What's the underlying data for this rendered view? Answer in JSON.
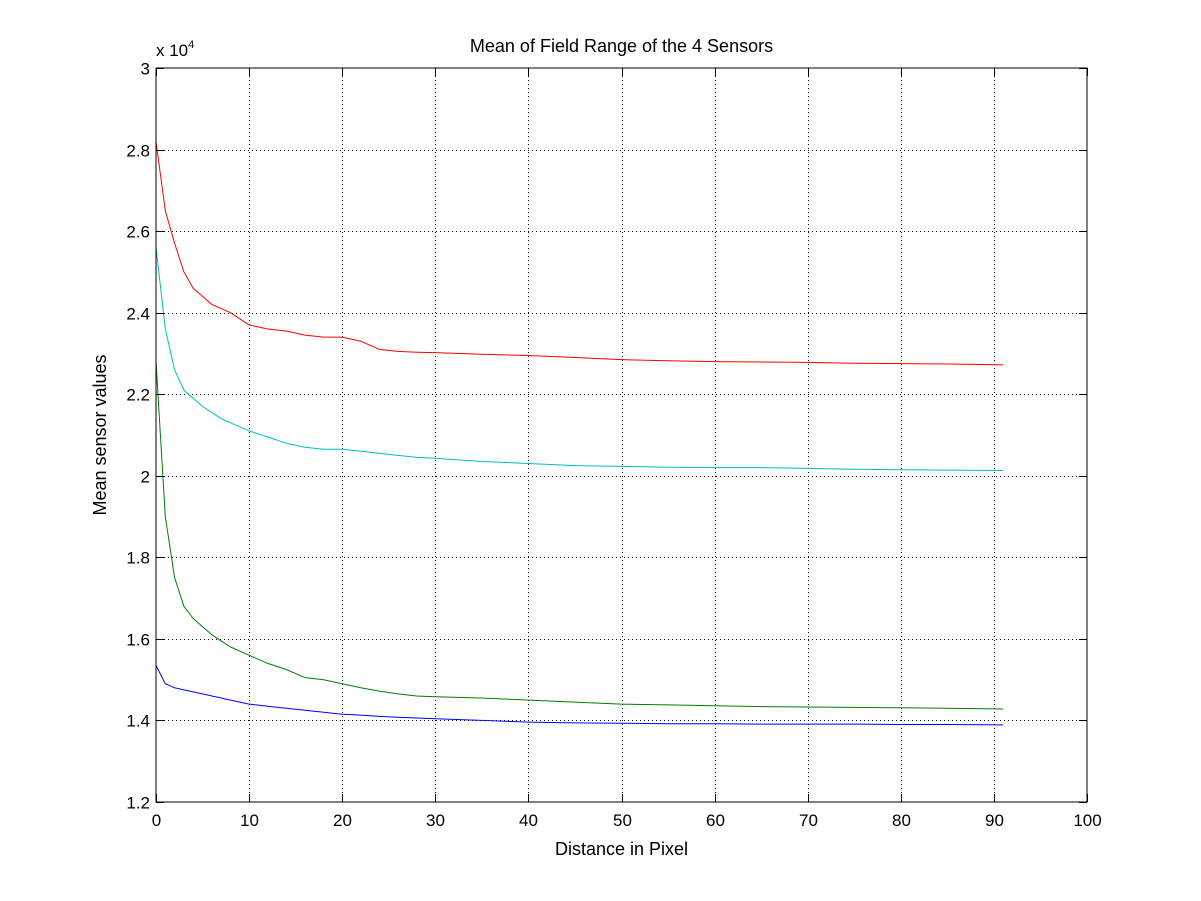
{
  "chart_data": {
    "type": "line",
    "title": "Mean of Field Range of the 4 Sensors",
    "xlabel": "Distance in Pixel",
    "ylabel": "Mean sensor values",
    "y_exponent_prefix": "x 10",
    "y_exponent_power": "4",
    "xlim": [
      0,
      100
    ],
    "ylim": [
      1.2,
      3.0
    ],
    "x_ticks": [
      0,
      10,
      20,
      30,
      40,
      50,
      60,
      70,
      80,
      90,
      100
    ],
    "x_tick_labels": [
      "0",
      "10",
      "20",
      "30",
      "40",
      "50",
      "60",
      "70",
      "80",
      "90",
      "100"
    ],
    "y_ticks": [
      1.2,
      1.4,
      1.6,
      1.8,
      2.0,
      2.2,
      2.4,
      2.6,
      2.8,
      3.0
    ],
    "y_tick_labels": [
      "1.2",
      "1.4",
      "1.6",
      "1.8",
      "2",
      "2.2",
      "2.4",
      "2.6",
      "2.8",
      "3"
    ],
    "grid": true,
    "x": [
      0,
      1,
      2,
      3,
      4,
      5,
      6,
      7,
      8,
      10,
      12,
      14,
      16,
      18,
      20,
      22,
      24,
      26,
      28,
      30,
      35,
      40,
      45,
      50,
      55,
      60,
      65,
      70,
      75,
      80,
      85,
      91
    ],
    "series": [
      {
        "color": "#ff0000",
        "values": [
          2.82,
          2.65,
          2.57,
          2.5,
          2.46,
          2.44,
          2.42,
          2.41,
          2.4,
          2.37,
          2.36,
          2.355,
          2.345,
          2.34,
          2.34,
          2.33,
          2.31,
          2.305,
          2.303,
          2.302,
          2.298,
          2.295,
          2.29,
          2.285,
          2.282,
          2.28,
          2.279,
          2.278,
          2.276,
          2.275,
          2.274,
          2.272
        ]
      },
      {
        "color": "#00bfbf",
        "values": [
          2.56,
          2.36,
          2.26,
          2.21,
          2.19,
          2.17,
          2.155,
          2.14,
          2.13,
          2.11,
          2.095,
          2.08,
          2.07,
          2.065,
          2.065,
          2.06,
          2.055,
          2.05,
          2.045,
          2.043,
          2.035,
          2.03,
          2.025,
          2.023,
          2.021,
          2.02,
          2.02,
          2.018,
          2.016,
          2.015,
          2.014,
          2.013
        ]
      },
      {
        "color": "#007f00",
        "values": [
          2.28,
          1.9,
          1.75,
          1.68,
          1.65,
          1.63,
          1.61,
          1.595,
          1.58,
          1.56,
          1.54,
          1.525,
          1.505,
          1.5,
          1.49,
          1.48,
          1.472,
          1.465,
          1.46,
          1.458,
          1.455,
          1.45,
          1.445,
          1.44,
          1.438,
          1.436,
          1.434,
          1.433,
          1.432,
          1.431,
          1.43,
          1.428
        ]
      },
      {
        "color": "#0000ff",
        "values": [
          1.535,
          1.49,
          1.48,
          1.475,
          1.47,
          1.465,
          1.46,
          1.455,
          1.45,
          1.44,
          1.435,
          1.43,
          1.425,
          1.42,
          1.415,
          1.413,
          1.41,
          1.408,
          1.406,
          1.404,
          1.4,
          1.396,
          1.394,
          1.393,
          1.392,
          1.392,
          1.391,
          1.391,
          1.391,
          1.39,
          1.39,
          1.389
        ]
      }
    ]
  }
}
